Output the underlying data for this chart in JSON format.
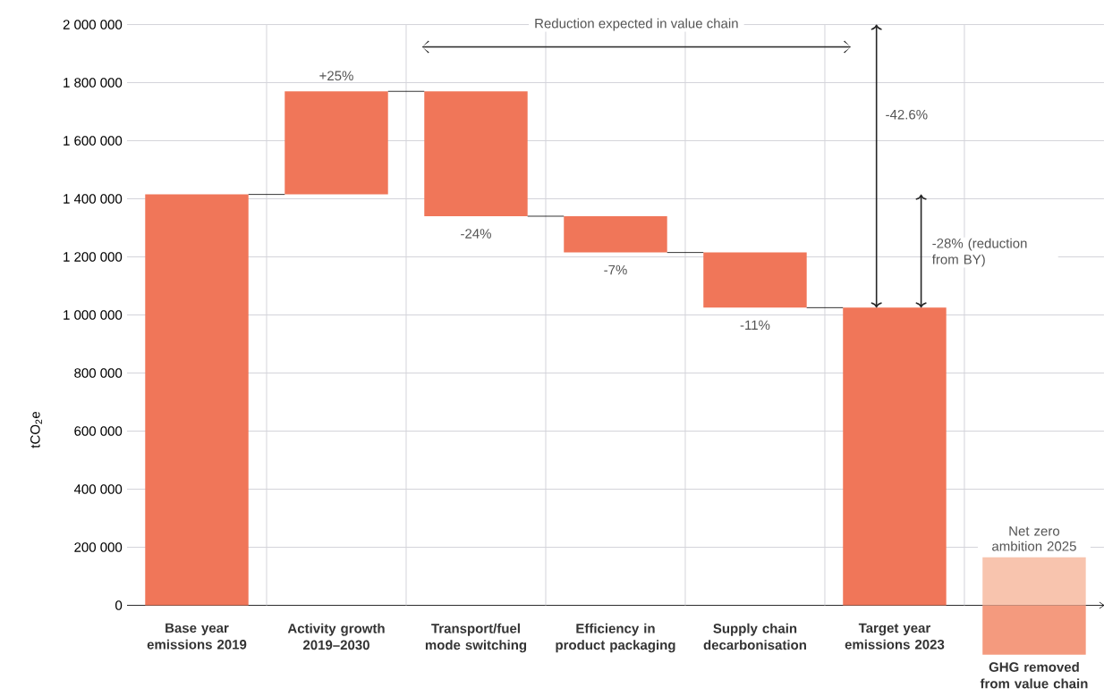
{
  "chart_data": {
    "type": "bar",
    "ylabel": "tCO$_{2}$e",
    "categories": [
      "Base year emissions 2019",
      "Activity growth 2019–2030",
      "Transport/fuel mode switching",
      "Efficiency in product packaging",
      "Supply chain decarbonisation",
      "Target year emissions 2023",
      "GHG removed from value chain"
    ],
    "series": [
      {
        "color": "#f07659",
        "values": [
          1415000,
          355000,
          -430000,
          -125000,
          -190000,
          1025000,
          null
        ],
        "base": [
          0,
          1415000,
          1770000,
          1340000,
          1215000,
          0,
          null
        ]
      },
      {
        "color": "#f8c4ae",
        "values": [
          null,
          null,
          null,
          null,
          null,
          null,
          165000
        ],
        "base": [
          null,
          null,
          null,
          null,
          null,
          null,
          0
        ]
      },
      {
        "color": "#f49a7e",
        "values": [
          null,
          null,
          null,
          null,
          null,
          null,
          170000
        ],
        "base": [
          null,
          null,
          null,
          null,
          null,
          null,
          -170000
        ]
      }
    ],
    "ylim": [
      -180000,
      2000000
    ],
    "yticks": [
      0,
      {
        "value": 200000,
        "label": "200 000"
      },
      {
        "value": 400000,
        "label": "400 000"
      },
      {
        "value": 600000,
        "label": "600 000"
      },
      {
        "value": 800000,
        "label": "800 000"
      },
      {
        "value": 1000000,
        "label": "1 000 000"
      },
      {
        "value": 1200000,
        "label": "1 200 000"
      },
      {
        "value": 1400000,
        "label": "1 400 000"
      },
      {
        "value": 1600000,
        "label": "1 600 000"
      },
      {
        "value": 1800000,
        "label": "1 800 000"
      },
      {
        "value": 2000000,
        "label": "2 000 000"
      }
    ],
    "grid": true,
    "annotations": [
      "Reduction expected in value chain",
      "-42.6%",
      "-28% (reduction from BY)",
      "Net zero ambition 2025",
      {
        "text": "+25%",
        "x": "Activity growth 2019–2030",
        "y": 1770000
      },
      {
        "text": "-24%",
        "x": "Transport/fuel mode switching",
        "y": 1340000
      },
      {
        "text": "-7%",
        "x": "Efficiency in product packaging",
        "y": 1215000
      },
      {
        "text": "-11%",
        "x": "Supply chain decarbonisation",
        "y": 1025000
      }
    ]
  }
}
